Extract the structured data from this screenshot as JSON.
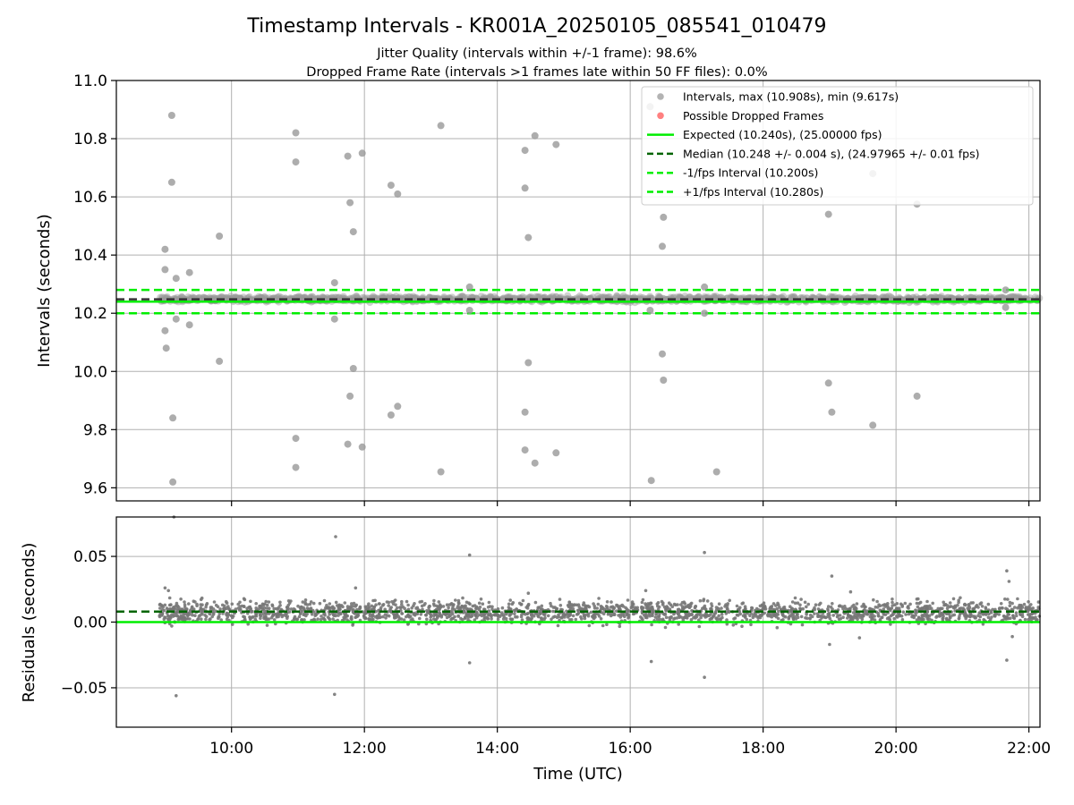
{
  "title": "Timestamp Intervals - KR001A_20250105_085541_010479",
  "subtitle_1": "Jitter Quality (intervals within +/-1 frame): 98.6%",
  "subtitle_2": "Dropped Frame Rate (intervals >1 frames late within 50 FF files): 0.0%",
  "xlabel": "Time (UTC)",
  "colors": {
    "intervals": "#999999",
    "residuals": "#777777",
    "dropped": "#ff0000",
    "expected": "#00ee00",
    "median": "#006400",
    "fps_interval": "#00ee00",
    "grid": "#b0b0b0"
  },
  "legend": {
    "position": "upper-right",
    "entries": [
      {
        "label": "Intervals, max (10.908s), min (9.617s)",
        "kind": "dot",
        "color": "#999999"
      },
      {
        "label": "Possible Dropped Frames",
        "kind": "dot",
        "color": "#ff5555"
      },
      {
        "label": "Expected (10.240s), (25.00000 fps)",
        "kind": "solid",
        "color": "#00ee00"
      },
      {
        "label": "Median (10.248 +/- 0.004 s), (24.97965 +/- 0.01 fps)",
        "kind": "dashed",
        "color": "#006400"
      },
      {
        "label": "-1/fps Interval (10.200s)",
        "kind": "dashed",
        "color": "#00ee00"
      },
      {
        "label": "+1/fps Interval (10.280s)",
        "kind": "dashed",
        "color": "#00ee00"
      }
    ]
  },
  "chart_data": [
    {
      "type": "scatter",
      "panel": "intervals",
      "ylabel": "Intervals (seconds)",
      "xlim": [
        "08:16",
        "22:10"
      ],
      "ylim": [
        9.555,
        11.0
      ],
      "x_ticks": [
        "10:00",
        "12:00",
        "14:00",
        "16:00",
        "18:00",
        "20:00",
        "22:00"
      ],
      "y_ticks": [
        "9.6",
        "9.8",
        "10.0",
        "10.2",
        "10.4",
        "10.6",
        "10.8",
        "11.0"
      ],
      "grid": true,
      "expected": 10.24,
      "median": 10.248,
      "lower_interval": 10.2,
      "upper_interval": 10.28,
      "bulk_band": {
        "x_range": [
          "08:55",
          "22:10"
        ],
        "y_range": [
          10.235,
          10.262
        ]
      },
      "outliers": [
        {
          "x": "09:00",
          "y": 10.42
        },
        {
          "x": "09:00",
          "y": 10.35
        },
        {
          "x": "09:00",
          "y": 10.14
        },
        {
          "x": "09:01",
          "y": 10.08
        },
        {
          "x": "09:06",
          "y": 10.88
        },
        {
          "x": "09:06",
          "y": 10.65
        },
        {
          "x": "09:07",
          "y": 9.84
        },
        {
          "x": "09:07",
          "y": 9.62
        },
        {
          "x": "09:10",
          "y": 10.32
        },
        {
          "x": "09:10",
          "y": 10.18
        },
        {
          "x": "09:22",
          "y": 10.34
        },
        {
          "x": "09:22",
          "y": 10.16
        },
        {
          "x": "09:49",
          "y": 10.465
        },
        {
          "x": "09:49",
          "y": 10.035
        },
        {
          "x": "10:58",
          "y": 10.82
        },
        {
          "x": "10:58",
          "y": 10.72
        },
        {
          "x": "10:58",
          "y": 9.77
        },
        {
          "x": "10:58",
          "y": 9.67
        },
        {
          "x": "11:33",
          "y": 10.305
        },
        {
          "x": "11:33",
          "y": 10.18
        },
        {
          "x": "11:45",
          "y": 10.74
        },
        {
          "x": "11:45",
          "y": 9.75
        },
        {
          "x": "11:47",
          "y": 10.58
        },
        {
          "x": "11:47",
          "y": 9.915
        },
        {
          "x": "11:50",
          "y": 10.48
        },
        {
          "x": "11:50",
          "y": 10.01
        },
        {
          "x": "11:58",
          "y": 10.75
        },
        {
          "x": "11:58",
          "y": 9.74
        },
        {
          "x": "12:24",
          "y": 10.64
        },
        {
          "x": "12:24",
          "y": 9.85
        },
        {
          "x": "12:30",
          "y": 10.61
        },
        {
          "x": "12:30",
          "y": 9.88
        },
        {
          "x": "13:09",
          "y": 10.845
        },
        {
          "x": "13:09",
          "y": 9.655
        },
        {
          "x": "13:35",
          "y": 10.29
        },
        {
          "x": "13:35",
          "y": 10.21
        },
        {
          "x": "14:25",
          "y": 10.76
        },
        {
          "x": "14:25",
          "y": 10.63
        },
        {
          "x": "14:25",
          "y": 9.86
        },
        {
          "x": "14:25",
          "y": 9.73
        },
        {
          "x": "14:28",
          "y": 10.46
        },
        {
          "x": "14:28",
          "y": 10.03
        },
        {
          "x": "14:34",
          "y": 10.81
        },
        {
          "x": "14:34",
          "y": 9.685
        },
        {
          "x": "14:53",
          "y": 10.78
        },
        {
          "x": "14:53",
          "y": 9.72
        },
        {
          "x": "16:18",
          "y": 10.91
        },
        {
          "x": "16:18",
          "y": 10.21
        },
        {
          "x": "16:19",
          "y": 9.625
        },
        {
          "x": "16:29",
          "y": 10.43
        },
        {
          "x": "16:29",
          "y": 10.06
        },
        {
          "x": "16:30",
          "y": 10.53
        },
        {
          "x": "16:30",
          "y": 9.97
        },
        {
          "x": "17:07",
          "y": 10.29
        },
        {
          "x": "17:07",
          "y": 10.2
        },
        {
          "x": "17:18",
          "y": 9.655
        },
        {
          "x": "18:59",
          "y": 10.54
        },
        {
          "x": "18:59",
          "y": 9.96
        },
        {
          "x": "19:02",
          "y": 9.86
        },
        {
          "x": "19:39",
          "y": 10.68
        },
        {
          "x": "19:39",
          "y": 9.815
        },
        {
          "x": "20:19",
          "y": 10.575
        },
        {
          "x": "20:19",
          "y": 9.915
        },
        {
          "x": "21:39",
          "y": 10.28
        },
        {
          "x": "21:39",
          "y": 10.22
        }
      ]
    },
    {
      "type": "scatter",
      "panel": "residuals",
      "ylabel": "Residuals (seconds)",
      "xlabel": "Time (UTC)",
      "xlim": [
        "08:16",
        "22:10"
      ],
      "ylim": [
        -0.08,
        0.08
      ],
      "x_ticks": [
        "10:00",
        "12:00",
        "14:00",
        "16:00",
        "18:00",
        "20:00",
        "22:00"
      ],
      "y_ticks": [
        "−0.05",
        "0.00",
        "0.05"
      ],
      "grid": true,
      "expected": 0.0,
      "median": 0.008,
      "bulk_band": {
        "x_range": [
          "08:55",
          "22:10"
        ],
        "y_range": [
          -0.005,
          0.02
        ]
      },
      "outliers": [
        {
          "x": "09:00",
          "y": 0.026
        },
        {
          "x": "09:03",
          "y": 0.024
        },
        {
          "x": "09:08",
          "y": 0.08
        },
        {
          "x": "09:10",
          "y": -0.056
        },
        {
          "x": "11:34",
          "y": 0.065
        },
        {
          "x": "11:33",
          "y": -0.055
        },
        {
          "x": "11:52",
          "y": 0.026
        },
        {
          "x": "13:35",
          "y": 0.051
        },
        {
          "x": "13:35",
          "y": -0.031
        },
        {
          "x": "14:28",
          "y": 0.022
        },
        {
          "x": "16:14",
          "y": 0.024
        },
        {
          "x": "16:19",
          "y": -0.03
        },
        {
          "x": "17:07",
          "y": 0.053
        },
        {
          "x": "17:07",
          "y": -0.042
        },
        {
          "x": "19:02",
          "y": 0.035
        },
        {
          "x": "19:00",
          "y": -0.017
        },
        {
          "x": "19:19",
          "y": 0.023
        },
        {
          "x": "19:27",
          "y": -0.012
        },
        {
          "x": "21:40",
          "y": 0.039
        },
        {
          "x": "21:42",
          "y": 0.031
        },
        {
          "x": "21:40",
          "y": -0.029
        },
        {
          "x": "21:45",
          "y": -0.011
        }
      ]
    }
  ]
}
